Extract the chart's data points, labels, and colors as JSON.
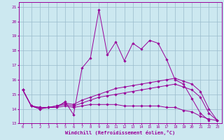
{
  "xlabel": "Windchill (Refroidissement éolien,°C)",
  "xlim": [
    -0.5,
    23.5
  ],
  "ylim": [
    13,
    21.3
  ],
  "yticks": [
    13,
    14,
    15,
    16,
    17,
    18,
    19,
    20,
    21
  ],
  "xticks": [
    0,
    1,
    2,
    3,
    4,
    5,
    6,
    7,
    8,
    9,
    10,
    11,
    12,
    13,
    14,
    15,
    16,
    17,
    18,
    19,
    20,
    21,
    22,
    23
  ],
  "bg_color": "#cce8f0",
  "line_color": "#990099",
  "grid_color": "#99bbcc",
  "series": [
    {
      "x": [
        0,
        1,
        2,
        3,
        4,
        5,
        6,
        7,
        8,
        9,
        10,
        11,
        12,
        13,
        14,
        15,
        16,
        17,
        18,
        19,
        20,
        21,
        22
      ],
      "y": [
        15.3,
        14.2,
        14.0,
        14.1,
        14.1,
        14.5,
        13.6,
        16.8,
        17.5,
        20.8,
        17.7,
        18.6,
        17.3,
        18.5,
        18.1,
        18.7,
        18.5,
        17.4,
        16.0,
        15.7,
        14.7,
        13.7,
        13.2
      ]
    },
    {
      "x": [
        0,
        1,
        2,
        3,
        4,
        5,
        6,
        7,
        8,
        9,
        10,
        11,
        12,
        13,
        14,
        15,
        16,
        17,
        18,
        19,
        20,
        21,
        22,
        23
      ],
      "y": [
        15.3,
        14.2,
        14.1,
        14.1,
        14.2,
        14.4,
        14.3,
        14.6,
        14.8,
        15.0,
        15.2,
        15.4,
        15.5,
        15.6,
        15.7,
        15.8,
        15.9,
        16.0,
        16.1,
        15.9,
        15.7,
        15.2,
        14.0,
        13.2
      ]
    },
    {
      "x": [
        0,
        1,
        2,
        3,
        4,
        5,
        6,
        7,
        8,
        9,
        10,
        11,
        12,
        13,
        14,
        15,
        16,
        17,
        18,
        19,
        20,
        21,
        22,
        23
      ],
      "y": [
        15.3,
        14.2,
        14.1,
        14.1,
        14.2,
        14.3,
        14.2,
        14.4,
        14.6,
        14.8,
        14.9,
        15.0,
        15.1,
        15.2,
        15.3,
        15.4,
        15.5,
        15.6,
        15.7,
        15.5,
        15.3,
        14.8,
        13.7,
        13.2
      ]
    },
    {
      "x": [
        0,
        1,
        2,
        3,
        4,
        5,
        6,
        7,
        8,
        9,
        10,
        11,
        12,
        13,
        14,
        15,
        16,
        17,
        18,
        19,
        20,
        21,
        22,
        23
      ],
      "y": [
        15.3,
        14.2,
        14.0,
        14.1,
        14.1,
        14.2,
        14.1,
        14.2,
        14.3,
        14.3,
        14.3,
        14.3,
        14.2,
        14.2,
        14.2,
        14.2,
        14.2,
        14.1,
        14.1,
        13.9,
        13.8,
        13.5,
        13.3,
        13.2
      ]
    }
  ]
}
